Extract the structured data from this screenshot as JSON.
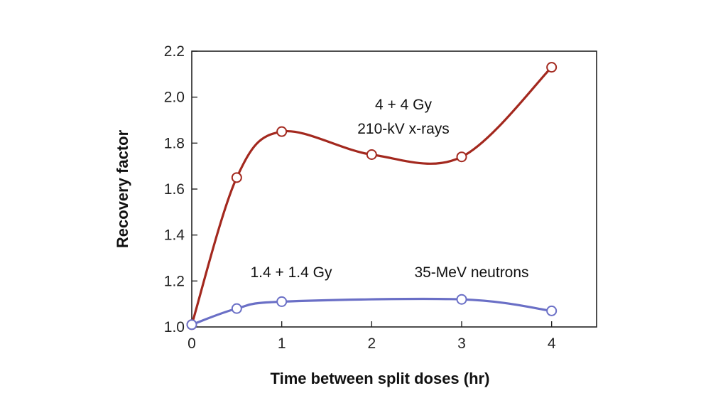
{
  "chart_data": {
    "type": "line",
    "title": "",
    "xlabel": "Time between split doses (hr)",
    "ylabel": "Recovery factor",
    "xlim": [
      0,
      4.5
    ],
    "ylim": [
      1.0,
      2.2
    ],
    "xticks": [
      0,
      1,
      2,
      3,
      4
    ],
    "xtick_labels": [
      "0",
      "1",
      "2",
      "3",
      "4"
    ],
    "yticks": [
      1.0,
      1.2,
      1.4,
      1.6,
      1.8,
      2.0,
      2.2
    ],
    "ytick_labels": [
      "1.0",
      "1.2",
      "1.4",
      "1.6",
      "1.8",
      "2.0",
      "2.2"
    ],
    "grid": false,
    "series": [
      {
        "color": "#a3281e",
        "x": [
          0,
          0.5,
          1,
          2,
          3,
          4
        ],
        "y": [
          1.01,
          1.65,
          1.85,
          1.75,
          1.74,
          2.13
        ]
      },
      {
        "color": "#6a6fc6",
        "x": [
          0,
          0.5,
          1,
          3,
          4
        ],
        "y": [
          1.01,
          1.08,
          1.11,
          1.12,
          1.07
        ]
      }
    ],
    "annotations": [
      {
        "id": "xray_dose",
        "text": "4 + 4 Gy"
      },
      {
        "id": "xray_type",
        "text": "210-kV x-rays"
      },
      {
        "id": "neutron_dose",
        "text": "1.4 + 1.4 Gy"
      },
      {
        "id": "neutron_type",
        "text": "35-MeV neutrons"
      }
    ]
  }
}
